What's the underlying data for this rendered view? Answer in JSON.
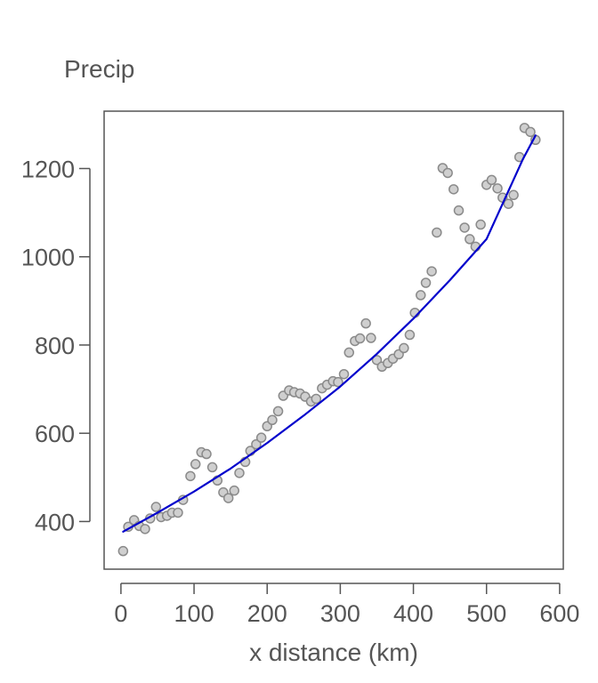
{
  "chart_data": {
    "type": "scatter",
    "title": "Precip",
    "xlabel": "x distance (km)",
    "ylabel": "",
    "xlim": [
      -23,
      605
    ],
    "ylim": [
      292,
      1330
    ],
    "xticks": [
      0,
      100,
      200,
      300,
      400,
      500,
      600
    ],
    "yticks": [
      400,
      600,
      800,
      1000,
      1200
    ],
    "grid": false,
    "colors": {
      "point_fill": "#cfcfcf",
      "point_stroke": "#8a8a8a",
      "fit_line": "#0000cc",
      "axis": "#555555",
      "text": "#555555"
    },
    "series": [
      {
        "kind": "points",
        "x": [
          3,
          10,
          18,
          25,
          33,
          40,
          48,
          55,
          63,
          70,
          78,
          85,
          95,
          102,
          110,
          117,
          125,
          132,
          140,
          147,
          155,
          162,
          170,
          177,
          185,
          192,
          200,
          207,
          215,
          222,
          230,
          237,
          245,
          252,
          260,
          267,
          275,
          282,
          290,
          297,
          305,
          312,
          320,
          327,
          335,
          342,
          350,
          357,
          365,
          372,
          380,
          387,
          395,
          402,
          410,
          417,
          425,
          432,
          440,
          447,
          455,
          462,
          470,
          477,
          485,
          492,
          500,
          507,
          515,
          522,
          530,
          537,
          545,
          552,
          560,
          567
        ],
        "y": [
          333,
          388,
          403,
          390,
          383,
          407,
          433,
          410,
          413,
          420,
          420,
          449,
          503,
          530,
          557,
          553,
          523,
          493,
          466,
          453,
          470,
          510,
          535,
          560,
          575,
          590,
          616,
          630,
          650,
          685,
          697,
          693,
          690,
          683,
          672,
          678,
          702,
          710,
          718,
          716,
          734,
          783,
          809,
          815,
          849,
          816,
          766,
          751,
          759,
          769,
          779,
          793,
          823,
          873,
          913,
          941,
          967,
          1055,
          1201,
          1190,
          1153,
          1105,
          1066,
          1040,
          1023,
          1073,
          1163,
          1174,
          1155,
          1134,
          1120,
          1140,
          1226,
          1292,
          1283,
          1265
        ]
      },
      {
        "kind": "line",
        "x": [
          3,
          50,
          100,
          150,
          200,
          250,
          300,
          350,
          400,
          450,
          500,
          550,
          567
        ],
        "y": [
          377,
          420,
          468,
          520,
          578,
          640,
          706,
          780,
          860,
          947,
          1040,
          1222,
          1275
        ]
      }
    ]
  }
}
